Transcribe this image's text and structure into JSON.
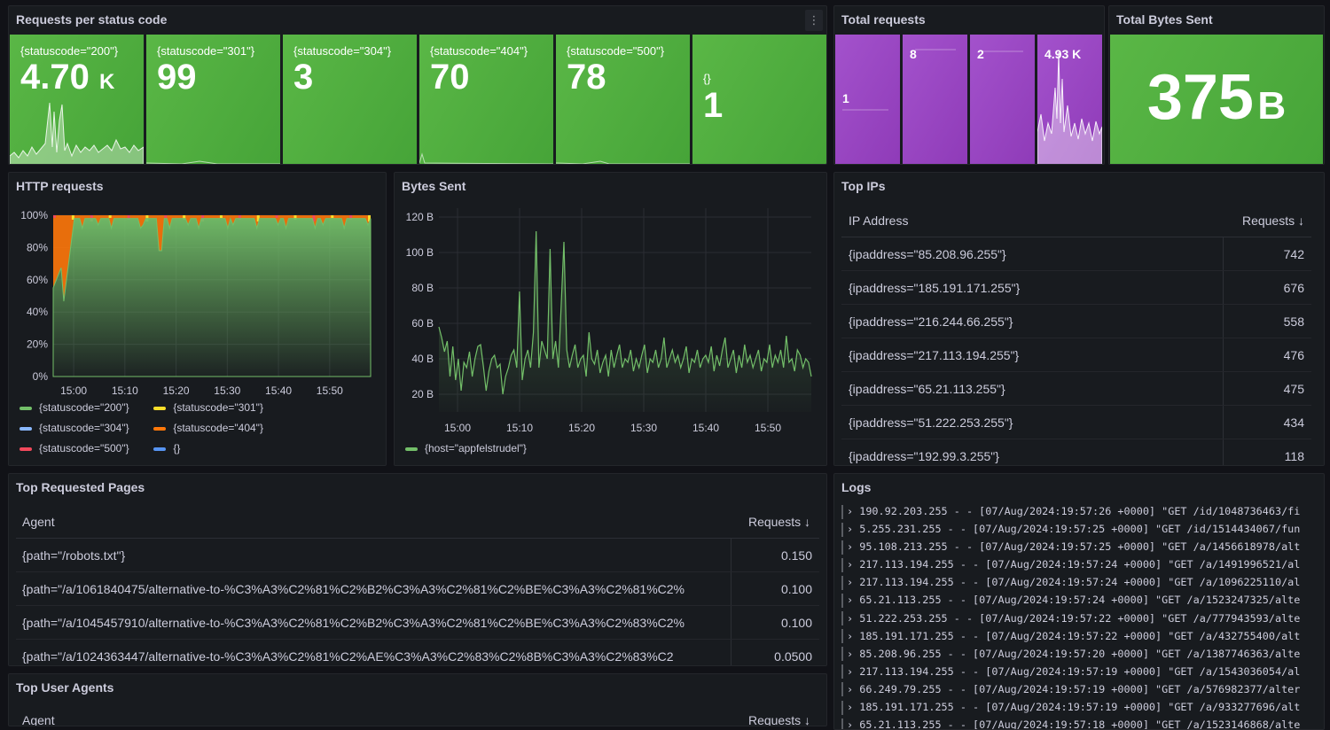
{
  "panels": {
    "requests_by_status": {
      "title": "Requests per status code",
      "menu": "⋮",
      "stats": [
        {
          "label": "{statuscode=\"200\"}",
          "value": "4.70",
          "unit": "K"
        },
        {
          "label": "{statuscode=\"301\"}",
          "value": "99",
          "unit": ""
        },
        {
          "label": "{statuscode=\"304\"}",
          "value": "3",
          "unit": ""
        },
        {
          "label": "{statuscode=\"404\"}",
          "value": "70",
          "unit": ""
        },
        {
          "label": "{statuscode=\"500\"}",
          "value": "78",
          "unit": ""
        },
        {
          "label": "{}",
          "value": "1",
          "unit": ""
        }
      ]
    },
    "total_requests": {
      "title": "Total requests",
      "values": [
        "1",
        "8",
        "2",
        "4.93 K"
      ]
    },
    "total_bytes": {
      "title": "Total Bytes Sent",
      "value": "375",
      "unit": "B"
    },
    "http_requests": {
      "title": "HTTP requests",
      "legend": [
        {
          "label": "{statuscode=\"200\"}",
          "color": "#73bf69"
        },
        {
          "label": "{statuscode=\"301\"}",
          "color": "#fade2a"
        },
        {
          "label": "{statuscode=\"304\"}",
          "color": "#8ab8ff"
        },
        {
          "label": "{statuscode=\"404\"}",
          "color": "#ff780a"
        },
        {
          "label": "{statuscode=\"500\"}",
          "color": "#f2495c"
        },
        {
          "label": "{}",
          "color": "#5794f2"
        }
      ]
    },
    "bytes_sent": {
      "title": "Bytes Sent",
      "legend": [
        {
          "label": "{host=\"appfelstrudel\"}",
          "color": "#73bf69"
        }
      ]
    },
    "top_ips": {
      "title": "Top IPs",
      "col_ip": "IP Address",
      "col_requests": "Requests",
      "sort_icon": "↓",
      "rows": [
        {
          "ip": "{ipaddress=\"85.208.96.255\"}",
          "requests": "742"
        },
        {
          "ip": "{ipaddress=\"185.191.171.255\"}",
          "requests": "676"
        },
        {
          "ip": "{ipaddress=\"216.244.66.255\"}",
          "requests": "558"
        },
        {
          "ip": "{ipaddress=\"217.113.194.255\"}",
          "requests": "476"
        },
        {
          "ip": "{ipaddress=\"65.21.113.255\"}",
          "requests": "475"
        },
        {
          "ip": "{ipaddress=\"51.222.253.255\"}",
          "requests": "434"
        },
        {
          "ip": "{ipaddress=\"192.99.3.255\"}",
          "requests": "118"
        }
      ]
    },
    "top_pages": {
      "title": "Top Requested Pages",
      "col_agent": "Agent",
      "col_requests": "Requests",
      "sort_icon": "↓",
      "rows": [
        {
          "path": "{path=\"/robots.txt\"}",
          "requests": "0.150"
        },
        {
          "path": "{path=\"/a/1061840475/alternative-to-%C3%A3%C2%81%C2%B2%C3%A3%C2%81%C2%BE%C3%A3%C2%81%C2%",
          "requests": "0.100"
        },
        {
          "path": "{path=\"/a/1045457910/alternative-to-%C3%A3%C2%81%C2%B2%C3%A3%C2%81%C2%BE%C3%A3%C2%83%C2%",
          "requests": "0.100"
        },
        {
          "path": "{path=\"/a/1024363447/alternative-to-%C3%A3%C2%81%C2%AE%C3%A3%C2%83%C2%8B%C3%A3%C2%83%C2",
          "requests": "0.0500"
        }
      ]
    },
    "top_agents": {
      "title": "Top User Agents",
      "col_agent": "Agent",
      "col_requests": "Requests",
      "sort_icon": "↓"
    },
    "logs": {
      "title": "Logs",
      "lines": [
        "190.92.203.255 - - [07/Aug/2024:19:57:26 +0000] \"GET /id/1048736463/fi",
        "5.255.231.255 - - [07/Aug/2024:19:57:25 +0000] \"GET /id/1514434067/fun",
        "95.108.213.255 - - [07/Aug/2024:19:57:25 +0000] \"GET /a/1456618978/alt",
        "217.113.194.255 - - [07/Aug/2024:19:57:24 +0000] \"GET /a/1491996521/al",
        "217.113.194.255 - - [07/Aug/2024:19:57:24 +0000] \"GET /a/1096225110/al",
        "65.21.113.255 - - [07/Aug/2024:19:57:24 +0000] \"GET /a/1523247325/alte",
        "51.222.253.255 - - [07/Aug/2024:19:57:22 +0000] \"GET /a/777943593/alte",
        "185.191.171.255 - - [07/Aug/2024:19:57:22 +0000] \"GET /a/432755400/alt",
        "85.208.96.255 - - [07/Aug/2024:19:57:20 +0000] \"GET /a/1387746363/alte",
        "217.113.194.255 - - [07/Aug/2024:19:57:19 +0000] \"GET /a/1543036054/al",
        "66.249.79.255 - - [07/Aug/2024:19:57:19 +0000] \"GET /a/576982377/alter",
        "185.191.171.255 - - [07/Aug/2024:19:57:19 +0000] \"GET /a/933277696/alt",
        "65.21.113.255 - - [07/Aug/2024:19:57:18 +0000] \"GET /a/1523146868/alte"
      ]
    }
  },
  "chart_data": [
    {
      "type": "area",
      "title": "HTTP requests",
      "y_ticks": [
        "0%",
        "20%",
        "40%",
        "60%",
        "80%",
        "100%"
      ],
      "x_ticks": [
        "15:00",
        "15:10",
        "15:20",
        "15:30",
        "15:40",
        "15:50"
      ],
      "ylim": [
        0,
        100
      ],
      "x_range_min": [
        -4,
        58
      ],
      "series": [
        {
          "name": "{statuscode=\"200\"}",
          "color": "#73bf69",
          "values_summary": "about 97-100% share across the range, dipping to about 45% at 14:59"
        },
        {
          "name": "{statuscode=\"404\"}",
          "color": "#ff780a",
          "values_summary": "large share near 14:57-15:00"
        },
        {
          "name": "{statuscode=\"301\"}",
          "color": "#fade2a",
          "values_summary": "small spikes"
        },
        {
          "name": "{statuscode=\"500\"}",
          "color": "#f2495c",
          "values_summary": "small spikes"
        }
      ],
      "stacked": true,
      "legend_position": "bottom"
    },
    {
      "type": "line",
      "title": "Bytes Sent",
      "y_ticks": [
        "20 B",
        "40 B",
        "60 B",
        "80 B",
        "100 B",
        "120 B"
      ],
      "x_ticks": [
        "15:00",
        "15:10",
        "15:20",
        "15:30",
        "15:40",
        "15:50"
      ],
      "ylim": [
        10,
        125
      ],
      "x_range_min": [
        -3,
        57
      ],
      "series": [
        {
          "name": "{host=\"appfelstrudel\"}",
          "color": "#73bf69",
          "values": [
            58,
            52,
            44,
            50,
            30,
            47,
            28,
            40,
            22,
            38,
            35,
            44,
            30,
            40,
            47,
            48,
            36,
            22,
            33,
            40,
            42,
            35,
            37,
            20,
            30,
            35,
            42,
            45,
            35,
            78,
            28,
            40,
            45,
            35,
            55,
            112,
            35,
            50,
            45,
            40,
            102,
            40,
            50,
            35,
            70,
            106,
            45,
            35,
            42,
            48,
            35,
            40,
            42,
            30,
            55,
            40,
            37,
            45,
            32,
            38,
            42,
            30,
            45,
            35,
            42,
            48,
            35,
            40,
            38,
            45,
            33,
            40,
            35,
            42,
            48,
            32,
            40,
            38,
            45,
            35,
            40,
            52,
            35,
            40,
            45,
            38,
            42,
            35,
            40,
            47,
            32,
            40,
            38,
            45,
            35,
            40,
            42,
            38,
            47,
            33,
            42,
            36,
            45,
            52,
            35,
            40,
            45,
            32,
            42,
            35,
            48,
            38,
            42,
            35,
            40,
            45,
            33,
            40,
            38,
            48,
            35,
            42,
            38,
            45,
            35,
            53,
            38,
            40,
            33,
            45,
            42,
            35,
            40,
            38,
            30
          ]
        }
      ],
      "legend_position": "bottom"
    }
  ]
}
